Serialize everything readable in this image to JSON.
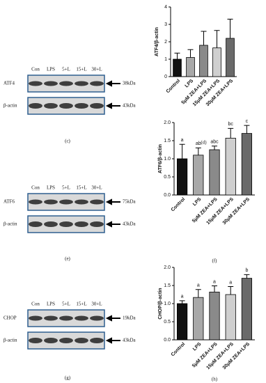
{
  "chart_data": [
    {
      "type": "bar",
      "panel": "(d)",
      "ylabel": "ATF4/β-actin",
      "categories": [
        "Control",
        "LPS",
        "5μM ZEA+LPS",
        "15μM ZEA+LPS",
        "30μM ZEA+LPS"
      ],
      "values": [
        1.0,
        1.1,
        1.8,
        1.65,
        2.2
      ],
      "errors": [
        0.35,
        0.45,
        0.8,
        1.0,
        1.1
      ],
      "colors": [
        "#111111",
        "#a8a8a8",
        "#8a8a8a",
        "#cfcfcf",
        "#6a6a6a"
      ],
      "ylim": [
        0,
        4
      ],
      "yticks": [
        0,
        1,
        2,
        3,
        4
      ]
    },
    {
      "type": "bar",
      "panel": "(f)",
      "ylabel": "ATF6/β-actin",
      "categories": [
        "Control",
        "LPS",
        "5μM ZEA+LPS",
        "15μM ZEA+LPS",
        "30μM ZEA+LPS"
      ],
      "values": [
        1.0,
        1.1,
        1.25,
        1.57,
        1.7
      ],
      "errors": [
        0.4,
        0.2,
        0.1,
        0.27,
        0.22
      ],
      "letters": [
        "a",
        "ab",
        "abc",
        "bc",
        "c"
      ],
      "colors": [
        "#111111",
        "#a8a8a8",
        "#8a8a8a",
        "#cfcfcf",
        "#6a6a6a"
      ],
      "ylim": [
        0,
        2
      ],
      "yticks": [
        {
          "value": 0,
          "label": "0.0"
        },
        0.5,
        {
          "value": 1,
          "label": "1.0"
        },
        1.5,
        {
          "value": 2,
          "label": "2.0"
        }
      ]
    },
    {
      "type": "bar",
      "panel": "(h)",
      "ylabel": "CHOP/β-actin",
      "categories": [
        "Control",
        "LPS",
        "5μM ZEA+LPS",
        "15μM ZEA+LPS",
        "30μM ZEA+LPS"
      ],
      "values": [
        1.0,
        1.17,
        1.32,
        1.25,
        1.7
      ],
      "errors": [
        0.08,
        0.22,
        0.17,
        0.22,
        0.1
      ],
      "letters": [
        "a",
        "a",
        "a",
        "a",
        "b"
      ],
      "colors": [
        "#111111",
        "#a8a8a8",
        "#8a8a8a",
        "#cfcfcf",
        "#6a6a6a"
      ],
      "ylim": [
        0,
        2
      ],
      "yticks": [
        {
          "value": 0,
          "label": "0.0"
        },
        0.5,
        {
          "value": 1,
          "label": "1.0"
        },
        1.5,
        {
          "value": 2,
          "label": "2.0"
        }
      ]
    }
  ],
  "blots": [
    {
      "panel": "(c)",
      "lanes": [
        "Con",
        "LPS",
        "5+L",
        "15+L",
        "30+L"
      ],
      "rows": [
        {
          "label": "ATF4",
          "size": "38kDa"
        },
        {
          "label": "β-actin",
          "size": "43kDa"
        }
      ]
    },
    {
      "panel": "(e)",
      "lanes": [
        "Con",
        "LPS",
        "5+L",
        "15+L",
        "30+L"
      ],
      "rows": [
        {
          "label": "ATF6",
          "size": "75kDa"
        },
        {
          "label": "β-actin",
          "size": "43kDa"
        }
      ]
    },
    {
      "panel": "(g)",
      "lanes": [
        "Con",
        "LPS",
        "5+L",
        "15+L",
        "30+L"
      ],
      "rows": [
        {
          "label": "CHOP",
          "size": "19kDa"
        },
        {
          "label": "β-actin",
          "size": "43kDa"
        }
      ]
    }
  ]
}
